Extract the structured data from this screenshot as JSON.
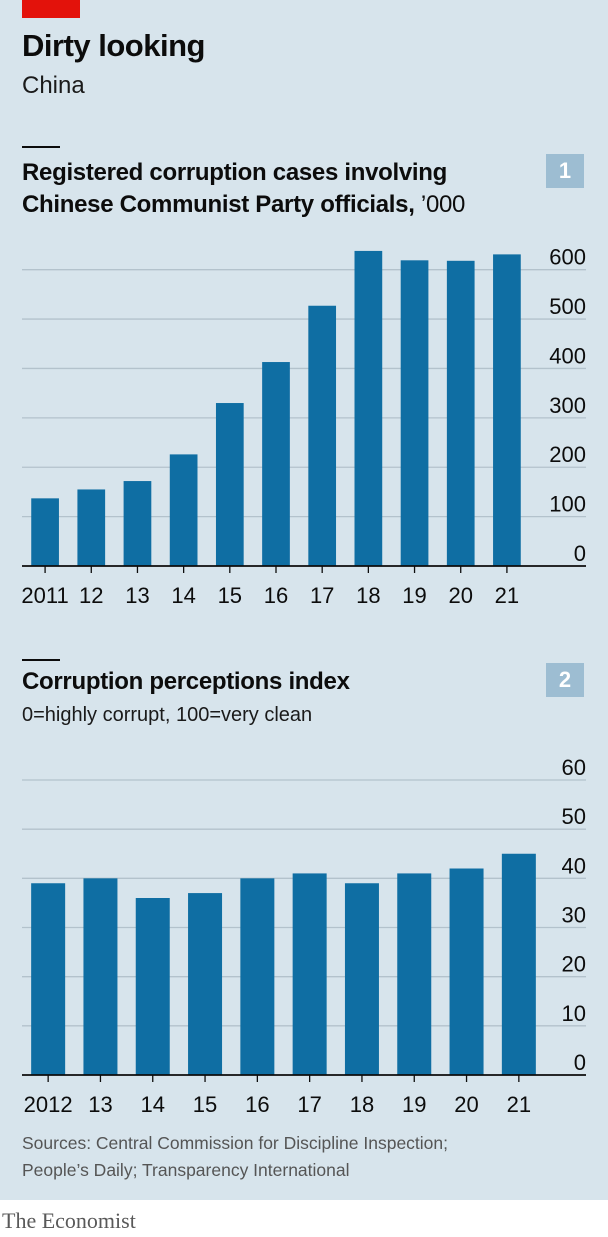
{
  "header": {
    "title": "Dirty looking",
    "subtitle": "China"
  },
  "charts": {
    "c1": {
      "title_line1": "Registered corruption cases involving",
      "title_line2": "Chinese Communist Party officials,",
      "unit": " ’000",
      "badge": "1"
    },
    "c2": {
      "title": "Corruption perceptions index",
      "subtitle": "0=highly corrupt, 100=very clean",
      "badge": "2"
    }
  },
  "footer": {
    "sources_line1": "Sources: Central Commission for Discipline Inspection;",
    "sources_line2": "People’s Daily; Transparency International",
    "brand": "The Economist"
  },
  "colors": {
    "bar": "#0f6ea3",
    "background": "#d7e4ec",
    "gridline": "#b3c2cc",
    "accent_red": "#e3120b",
    "badge": "#9dbdd2"
  },
  "chart_data": [
    {
      "type": "bar",
      "title": "Registered corruption cases involving Chinese Communist Party officials, ’000",
      "categories": [
        "2011",
        "12",
        "13",
        "14",
        "15",
        "16",
        "17",
        "18",
        "19",
        "20",
        "21"
      ],
      "values": [
        137,
        155,
        172,
        226,
        330,
        413,
        527,
        638,
        619,
        618,
        631
      ],
      "yticks": [
        0,
        100,
        200,
        300,
        400,
        500,
        600
      ],
      "ylim": [
        0,
        650
      ],
      "grid": true,
      "ytick_side": "right"
    },
    {
      "type": "bar",
      "title": "Corruption perceptions index",
      "subtitle": "0=highly corrupt, 100=very clean",
      "categories": [
        "2012",
        "13",
        "14",
        "15",
        "16",
        "17",
        "18",
        "19",
        "20",
        "21"
      ],
      "values": [
        39,
        40,
        36,
        37,
        40,
        41,
        39,
        41,
        42,
        45
      ],
      "yticks": [
        0,
        10,
        20,
        30,
        40,
        50,
        60
      ],
      "ylim": [
        0,
        60
      ],
      "grid": true,
      "ytick_side": "right"
    }
  ]
}
